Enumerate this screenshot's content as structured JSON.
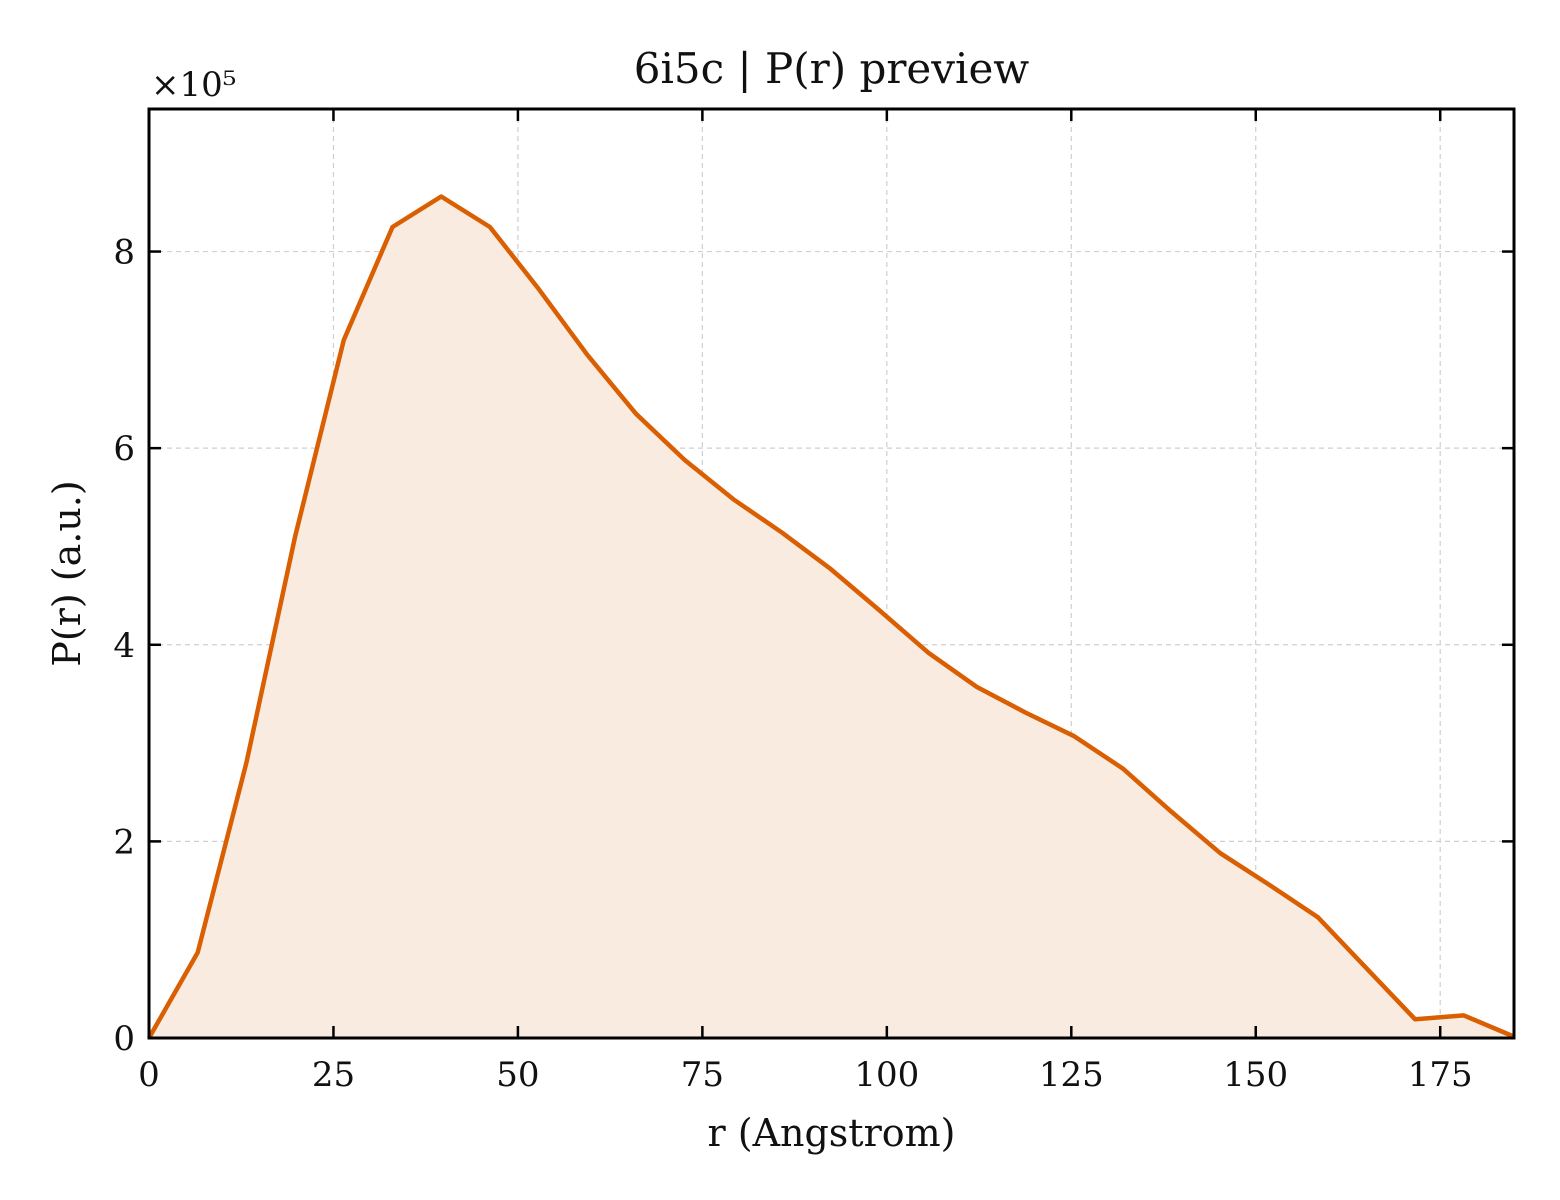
{
  "chart_data": {
    "type": "area",
    "title": "6i5c | P(r) preview",
    "xlabel": "r (Angstrom)",
    "ylabel": "P(r) (a.u.)",
    "y_offset_label": "×10⁵",
    "xlim": [
      0,
      185
    ],
    "ylim": [
      0,
      9.45
    ],
    "grid": true,
    "x_ticks": [
      0,
      25,
      50,
      75,
      100,
      125,
      150,
      175
    ],
    "x_tick_labels": [
      "0",
      "25",
      "50",
      "75",
      "100",
      "125",
      "150",
      "175"
    ],
    "y_ticks": [
      0,
      2,
      4,
      6,
      8
    ],
    "y_tick_labels": [
      "0",
      "2",
      "4",
      "6",
      "8"
    ],
    "colors": {
      "line": "#d95f02",
      "fill": "#f9ebe0"
    },
    "series": [
      {
        "x": [
          0,
          6.6,
          13.2,
          19.8,
          26.4,
          33.0,
          39.6,
          46.2,
          52.8,
          59.4,
          66.0,
          72.6,
          79.2,
          85.8,
          92.4,
          99.0,
          105.6,
          112.2,
          118.8,
          125.4,
          132.0,
          138.6,
          145.2,
          151.8,
          158.4,
          165.0,
          171.6,
          178.2,
          184.8
        ],
        "values": [
          0,
          0.87,
          2.8,
          5.1,
          7.1,
          8.25,
          8.56,
          8.25,
          7.62,
          6.95,
          6.35,
          5.88,
          5.48,
          5.14,
          4.77,
          4.35,
          3.92,
          3.57,
          3.31,
          3.07,
          2.74,
          2.3,
          1.88,
          1.56,
          1.23,
          0.71,
          0.19,
          0.23,
          0.02
        ]
      }
    ]
  }
}
